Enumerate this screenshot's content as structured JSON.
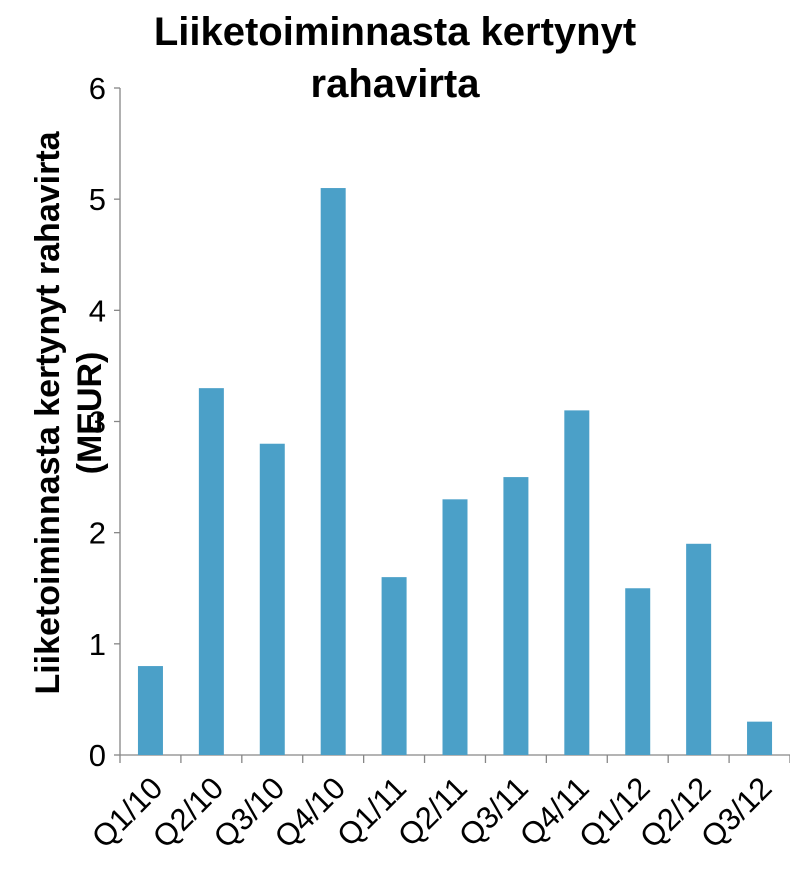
{
  "chart_data": {
    "type": "bar",
    "title_lines": [
      "Liiketoiminnasta kertynyt",
      "rahavirta"
    ],
    "ylabel_lines": [
      "Liiketoiminnasta kertynyt rahavirta",
      "(MEUR)"
    ],
    "xlabel": "",
    "categories": [
      "Q1/10",
      "Q2/10",
      "Q3/10",
      "Q4/10",
      "Q1/11",
      "Q2/11",
      "Q3/11",
      "Q4/11",
      "Q1/12",
      "Q2/12",
      "Q3/12"
    ],
    "values": [
      0.8,
      3.3,
      2.8,
      5.1,
      1.6,
      2.3,
      2.5,
      3.1,
      1.5,
      1.9,
      0.3
    ],
    "ylim": [
      0,
      6
    ],
    "yticks": [
      "0",
      "1",
      "2",
      "3",
      "4",
      "5",
      "6"
    ],
    "bar_color": "#4BA0C8",
    "grid": false,
    "legend": "none"
  }
}
